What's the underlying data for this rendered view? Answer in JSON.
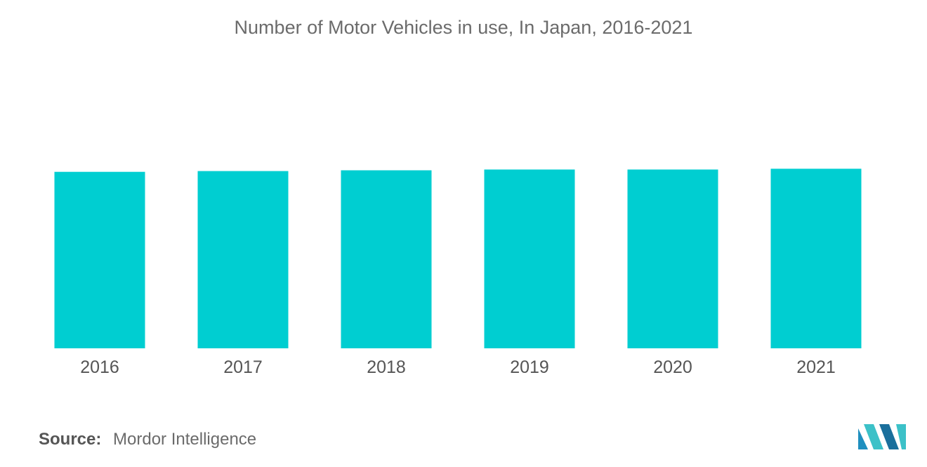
{
  "chart_data": {
    "type": "bar",
    "title": "Number of Motor Vehicles in use, In Japan, 2016-2021",
    "categories": [
      "2016",
      "2017",
      "2018",
      "2019",
      "2020",
      "2021"
    ],
    "values": [
      0.924,
      0.928,
      0.932,
      0.936,
      0.936,
      0.94
    ],
    "value_note_unit": "relative",
    "ylim": [
      0,
      1
    ],
    "grid": false,
    "legend": "none",
    "bar_color": "#00CED1"
  },
  "source": {
    "label": "Source:",
    "name": "Mordor Intelligence"
  },
  "logo": {
    "icon": "mordor-intelligence-logo",
    "colors": [
      "#1f8fbf",
      "#3cc1c8",
      "#1a6f9c"
    ]
  }
}
